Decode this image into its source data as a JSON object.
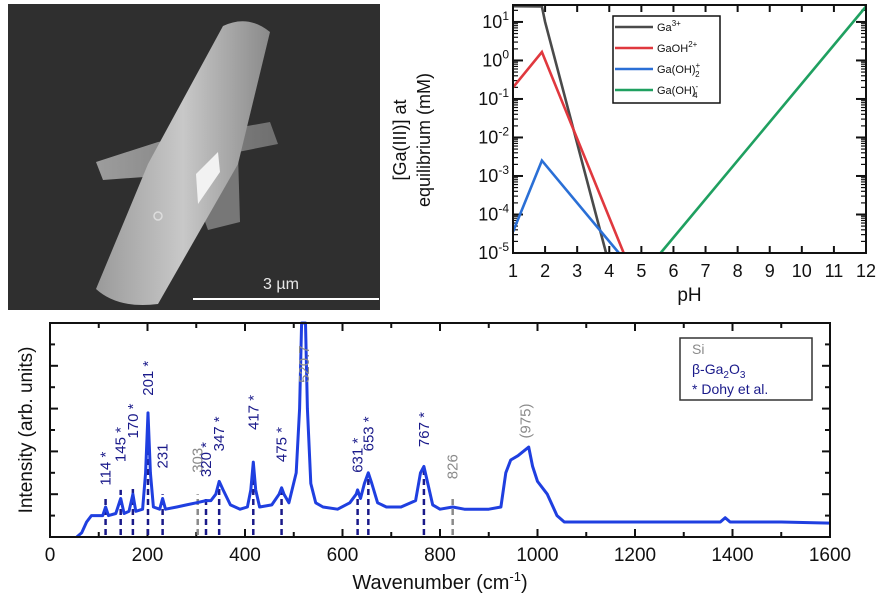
{
  "sem_image": {
    "description": "SEM micrograph of a rod-shaped crystal with cross-shaped protrusions",
    "scale_bar_label": "3 µm"
  },
  "chart_data": [
    {
      "type": "line",
      "title": "",
      "xlabel": "pH",
      "ylabel_line1": "[Ga(III)] at",
      "ylabel_line2": "equilibrium (mM)",
      "yscale": "log",
      "xlim": [
        1,
        12
      ],
      "ylim_exp": [
        -5,
        1.44
      ],
      "x_ticks": [
        "1",
        "2",
        "3",
        "4",
        "5",
        "6",
        "7",
        "8",
        "9",
        "10",
        "11",
        "12"
      ],
      "y_ticks": [
        {
          "base": "10",
          "exp": "1",
          "value": 1
        },
        {
          "base": "10",
          "exp": "0",
          "value": 0
        },
        {
          "base": "10",
          "exp": "-1",
          "value": -1
        },
        {
          "base": "10",
          "exp": "-2",
          "value": -2
        },
        {
          "base": "10",
          "exp": "-3",
          "value": -3
        },
        {
          "base": "10",
          "exp": "-4",
          "value": -4
        },
        {
          "base": "10",
          "exp": "-5",
          "value": -5
        }
      ],
      "legend_position": "top-right",
      "series": [
        {
          "name": "Ga3+",
          "label_main": "Ga",
          "label_sup": "3+",
          "label_sub": "",
          "color": "#4a4a4a",
          "points_log10": [
            [
              1,
              1.41
            ],
            [
              1.9,
              1.4
            ],
            [
              2.0,
              1.0
            ],
            [
              3.9,
              -5
            ]
          ]
        },
        {
          "name": "GaOH2+",
          "label_main": "GaOH",
          "label_sup": "2+",
          "label_sub": "",
          "color": "#e0383e",
          "points_log10": [
            [
              1,
              -0.7
            ],
            [
              1.9,
              0.22
            ],
            [
              4.45,
              -5
            ]
          ]
        },
        {
          "name": "Ga(OH)2+",
          "label_main": "Ga(OH)",
          "label_sup": "+",
          "label_sub": "2",
          "color": "#2a6fd6",
          "points_log10": [
            [
              1,
              -4.45
            ],
            [
              1.9,
              -2.6
            ],
            [
              4.3,
              -5
            ]
          ]
        },
        {
          "name": "Ga(OH)4-",
          "label_main": "Ga(OH)",
          "label_sup": "-",
          "label_sub": "4",
          "color": "#1fa060",
          "points_log10": [
            [
              5.6,
              -5
            ],
            [
              12,
              1.4
            ]
          ]
        }
      ]
    },
    {
      "type": "line",
      "title": "",
      "xlabel": "Wavenumber (cm",
      "xlabel_sup": "-1",
      "xlabel_close": ")",
      "ylabel": "Intensity (arb. units)",
      "xlim": [
        0,
        1600
      ],
      "ylim": [
        0,
        1
      ],
      "x_ticks": [
        "0",
        "200",
        "400",
        "600",
        "800",
        "1000",
        "1200",
        "1400",
        "1600"
      ],
      "legend_position": "top-right",
      "legend": [
        {
          "text": "Si",
          "color": "#8a8a8a"
        },
        {
          "text_main": "β-Ga",
          "sub1": "2",
          "mid": "O",
          "sub2": "3",
          "color": "#1a1a8a"
        },
        {
          "text": "* Dohy et al.",
          "color": "#1a1a8a"
        }
      ],
      "series_color": "#1f3fe0",
      "spectrum": [
        [
          55,
          0
        ],
        [
          65,
          0.02
        ],
        [
          75,
          0.07
        ],
        [
          85,
          0.1
        ],
        [
          100,
          0.1
        ],
        [
          108,
          0.1
        ],
        [
          114,
          0.14
        ],
        [
          120,
          0.1
        ],
        [
          135,
          0.11
        ],
        [
          145,
          0.18
        ],
        [
          152,
          0.11
        ],
        [
          162,
          0.12
        ],
        [
          170,
          0.2
        ],
        [
          176,
          0.12
        ],
        [
          190,
          0.13
        ],
        [
          196,
          0.3
        ],
        [
          201,
          0.58
        ],
        [
          206,
          0.3
        ],
        [
          212,
          0.14
        ],
        [
          225,
          0.13
        ],
        [
          231,
          0.18
        ],
        [
          237,
          0.13
        ],
        [
          260,
          0.14
        ],
        [
          280,
          0.15
        ],
        [
          300,
          0.16
        ],
        [
          320,
          0.17
        ],
        [
          330,
          0.17
        ],
        [
          340,
          0.2
        ],
        [
          347,
          0.26
        ],
        [
          355,
          0.22
        ],
        [
          370,
          0.15
        ],
        [
          390,
          0.13
        ],
        [
          405,
          0.14
        ],
        [
          412,
          0.22
        ],
        [
          417,
          0.35
        ],
        [
          422,
          0.22
        ],
        [
          430,
          0.14
        ],
        [
          455,
          0.15
        ],
        [
          470,
          0.2
        ],
        [
          475,
          0.23
        ],
        [
          480,
          0.2
        ],
        [
          490,
          0.16
        ],
        [
          505,
          0.3
        ],
        [
          512,
          0.6
        ],
        [
          516,
          1.2
        ],
        [
          524,
          1.2
        ],
        [
          528,
          0.6
        ],
        [
          535,
          0.25
        ],
        [
          545,
          0.16
        ],
        [
          560,
          0.14
        ],
        [
          590,
          0.13
        ],
        [
          615,
          0.16
        ],
        [
          628,
          0.2
        ],
        [
          631,
          0.22
        ],
        [
          637,
          0.18
        ],
        [
          645,
          0.25
        ],
        [
          653,
          0.3
        ],
        [
          660,
          0.25
        ],
        [
          672,
          0.16
        ],
        [
          690,
          0.14
        ],
        [
          720,
          0.14
        ],
        [
          750,
          0.17
        ],
        [
          760,
          0.3
        ],
        [
          767,
          0.33
        ],
        [
          775,
          0.25
        ],
        [
          785,
          0.15
        ],
        [
          800,
          0.13
        ],
        [
          826,
          0.14
        ],
        [
          850,
          0.13
        ],
        [
          900,
          0.13
        ],
        [
          925,
          0.14
        ],
        [
          935,
          0.3
        ],
        [
          945,
          0.36
        ],
        [
          960,
          0.38
        ],
        [
          982,
          0.42
        ],
        [
          990,
          0.33
        ],
        [
          1000,
          0.26
        ],
        [
          1020,
          0.2
        ],
        [
          1040,
          0.1
        ],
        [
          1055,
          0.07
        ],
        [
          1100,
          0.07
        ],
        [
          1200,
          0.07
        ],
        [
          1300,
          0.07
        ],
        [
          1375,
          0.07
        ],
        [
          1385,
          0.09
        ],
        [
          1395,
          0.07
        ],
        [
          1500,
          0.07
        ],
        [
          1600,
          0.065
        ]
      ],
      "peak_markers": [
        {
          "x": 114,
          "label": "114",
          "star": true,
          "color": "#1a1a8a",
          "y_top": 0.18,
          "label_y": 0.24
        },
        {
          "x": 145,
          "label": "145",
          "star": true,
          "color": "#1a1a8a",
          "y_top": 0.22,
          "label_y": 0.35
        },
        {
          "x": 170,
          "label": "170",
          "star": true,
          "color": "#1a1a8a",
          "y_top": 0.24,
          "label_y": 0.46
        },
        {
          "x": 201,
          "label": "201",
          "star": true,
          "color": "#1a1a8a",
          "y_top": 0.58,
          "label_y": 0.66
        },
        {
          "x": 231,
          "label": "231",
          "star": false,
          "color": "#1a1a8a",
          "y_top": 0.2,
          "label_y": 0.32
        },
        {
          "x": 303,
          "label": "303",
          "star": false,
          "color": "#8a8a8a",
          "y_top": 0.2,
          "label_y": 0.3
        },
        {
          "x": 320,
          "label": "320",
          "star": true,
          "color": "#1a1a8a",
          "y_top": 0.18,
          "label_y": 0.28
        },
        {
          "x": 347,
          "label": "347",
          "star": true,
          "color": "#1a1a8a",
          "y_top": 0.26,
          "label_y": 0.4
        },
        {
          "x": 417,
          "label": "417",
          "star": true,
          "color": "#1a1a8a",
          "y_top": 0.35,
          "label_y": 0.5
        },
        {
          "x": 475,
          "label": "475",
          "star": true,
          "color": "#1a1a8a",
          "y_top": 0.23,
          "label_y": 0.35
        },
        {
          "x": 520.7,
          "label": "520.7",
          "star": false,
          "color": "#8a8a8a",
          "y_top": null,
          "label_y": 0.72
        },
        {
          "x": 631,
          "label": "631",
          "star": true,
          "color": "#1a1a8a",
          "y_top": 0.22,
          "label_y": 0.3
        },
        {
          "x": 653,
          "label": "653",
          "star": true,
          "color": "#1a1a8a",
          "y_top": 0.3,
          "label_y": 0.4
        },
        {
          "x": 767,
          "label": "767",
          "star": true,
          "color": "#1a1a8a",
          "y_top": 0.33,
          "label_y": 0.42
        },
        {
          "x": 826,
          "label": "826",
          "star": false,
          "color": "#8a8a8a",
          "y_top": 0.18,
          "label_y": 0.27
        },
        {
          "x": 975,
          "label": "(975)",
          "star": false,
          "color": "#8a8a8a",
          "y_top": null,
          "label_y": 0.46
        }
      ]
    }
  ]
}
